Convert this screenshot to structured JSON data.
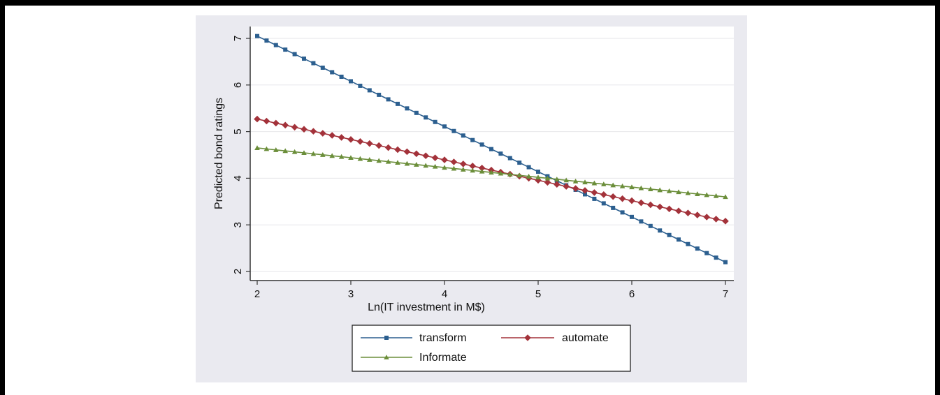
{
  "chart_data": {
    "type": "line",
    "title": "",
    "xlabel": "Ln(IT  investment in M$)",
    "ylabel": "Predicted bond ratings",
    "xlim": [
      2,
      7
    ],
    "ylim": [
      1.8,
      7.3
    ],
    "xticks": [
      2,
      3,
      4,
      5,
      6,
      7
    ],
    "yticks": [
      2,
      3,
      4,
      5,
      6,
      7
    ],
    "grid": true,
    "legend_position": "bottom",
    "series": [
      {
        "name": "transform",
        "color": "#2c5f8f",
        "marker": "square",
        "x_start": 2,
        "x_end": 7,
        "y_start": 7.05,
        "y_end": 2.2,
        "n_points": 51
      },
      {
        "name": "automate",
        "color": "#a3323a",
        "marker": "diamond",
        "x_start": 2,
        "x_end": 7,
        "y_start": 5.27,
        "y_end": 3.08,
        "n_points": 51
      },
      {
        "name": "Informate",
        "color": "#6b8e3a",
        "marker": "triangle",
        "x_start": 2,
        "x_end": 7,
        "y_start": 4.65,
        "y_end": 3.6,
        "n_points": 51
      }
    ]
  }
}
